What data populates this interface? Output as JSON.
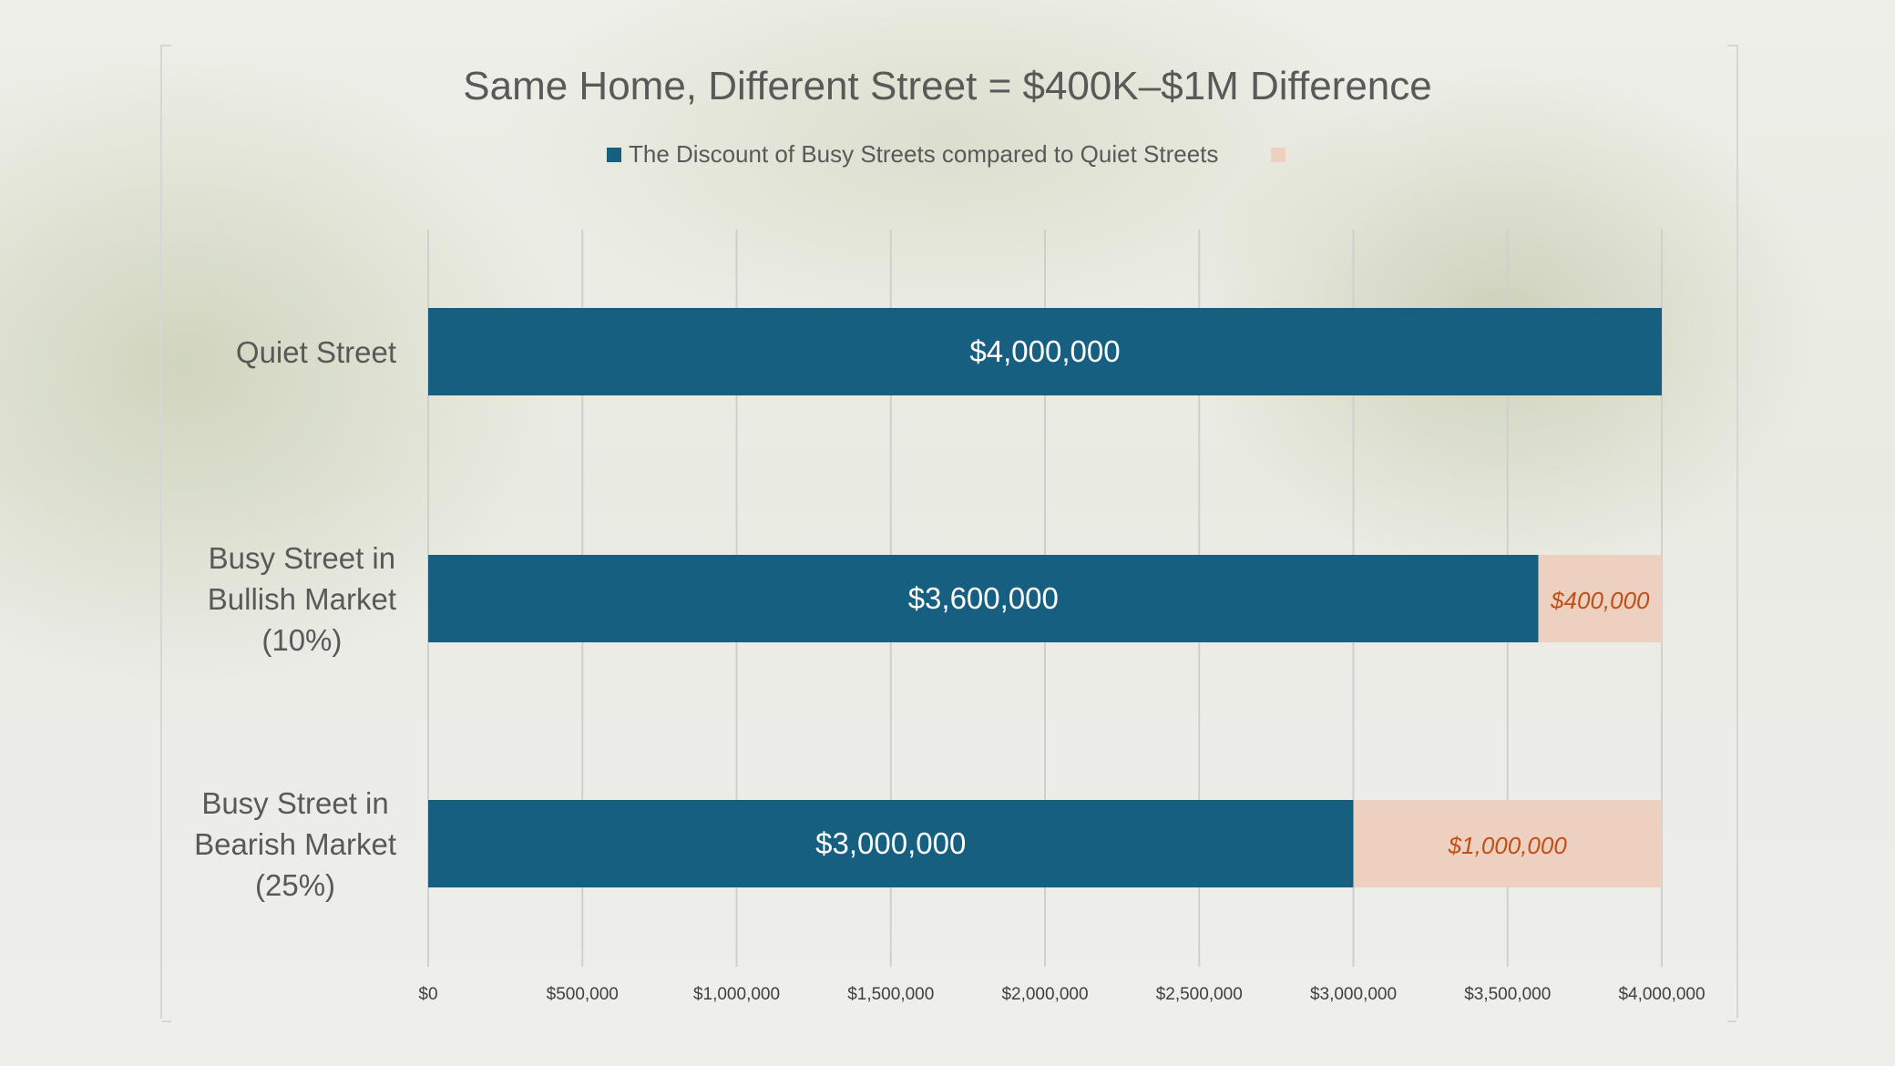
{
  "chart_data": {
    "type": "bar",
    "orientation": "horizontal",
    "stacked": true,
    "title": "Same Home, Different Street = $400K–$1M Difference",
    "categories": [
      "Quiet Street",
      "Busy Street in Bullish Market (10%)",
      "Busy Street in Bearish Market (25%)"
    ],
    "category_lines": [
      [
        "Quiet Street"
      ],
      [
        "Busy Street in",
        "Bullish Market",
        "(10%)"
      ],
      [
        "Busy Street in",
        "Bearish Market",
        "(25%)"
      ]
    ],
    "series": [
      {
        "name": "The Discount of Busy Streets compared to Quiet Streets",
        "values": [
          4000000,
          3600000,
          3000000
        ],
        "labels": [
          "$4,000,000",
          "$3,600,000",
          "$3,000,000"
        ],
        "color": "#165f80"
      },
      {
        "name": "",
        "values": [
          0,
          400000,
          1000000
        ],
        "labels": [
          "",
          "$400,000",
          "$1,000,000"
        ],
        "color": "#eed0c0",
        "label_color": "#c0501a"
      }
    ],
    "xlim": [
      0,
      4000000
    ],
    "xticks": [
      "$0",
      "$500,000",
      "$1,000,000",
      "$1,500,000",
      "$2,000,000",
      "$2,500,000",
      "$3,000,000",
      "$3,500,000",
      "$4,000,000"
    ],
    "grid": "vertical",
    "legend": "top"
  }
}
